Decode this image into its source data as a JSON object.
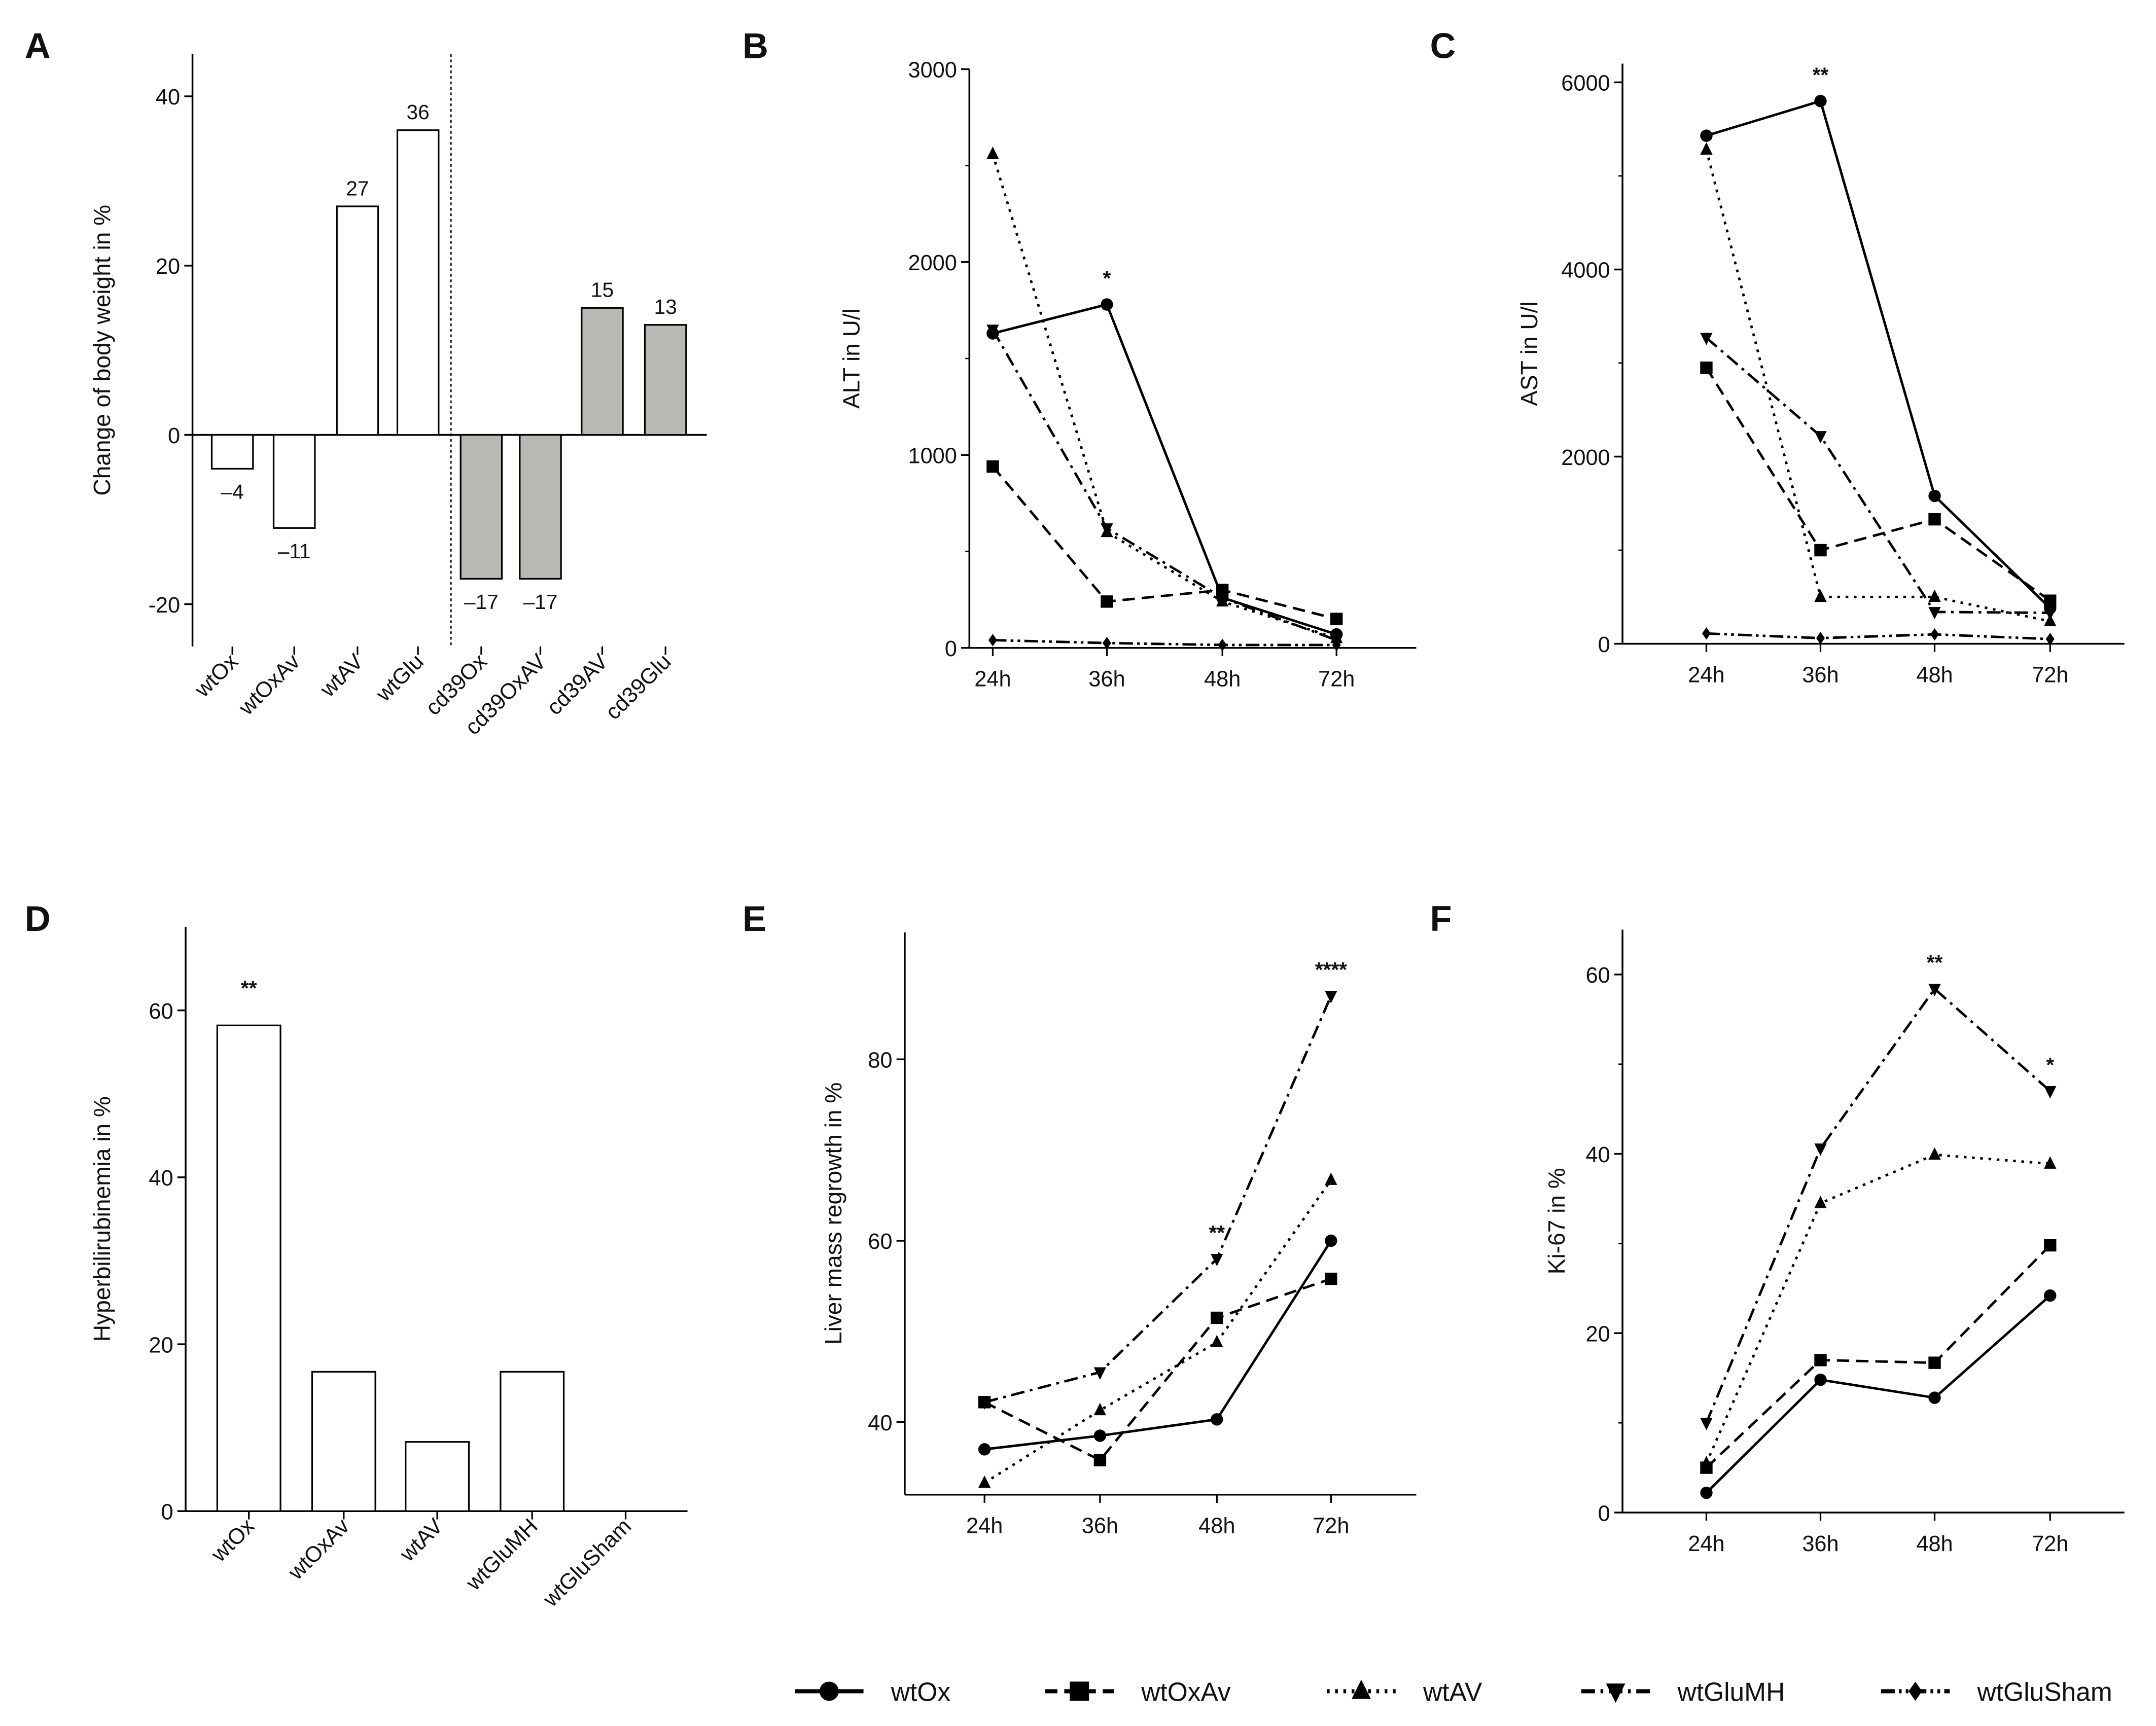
{
  "panel_letters": [
    "A",
    "B",
    "C",
    "D",
    "E",
    "F"
  ],
  "legend": [
    {
      "name": "wtOx",
      "marker": "circle",
      "dash": "solid"
    },
    {
      "name": "wtOxAv",
      "marker": "square",
      "dash": "dashed"
    },
    {
      "name": "wtAV",
      "marker": "triangle",
      "dash": "dotted"
    },
    {
      "name": "wtGluMH",
      "marker": "triangle-down",
      "dash": "dash-dot"
    },
    {
      "name": "wtGluSham",
      "marker": "diamond",
      "dash": "dash-dot-dot"
    }
  ],
  "chart_data": [
    {
      "panel": "A",
      "type": "bar",
      "ylabel": "Change of body weight in %",
      "ylim": [
        -25,
        45
      ],
      "yticks": [
        -20,
        0,
        20,
        40
      ],
      "categories": [
        "wtOx",
        "wtOxAv",
        "wtAV",
        "wtGlu",
        "cd39Ox",
        "cd39OxAV",
        "cd39AV",
        "cd39Glu"
      ],
      "values": [
        -4,
        -11,
        27,
        36,
        -17,
        -17,
        15,
        13
      ],
      "data_labels": [
        "–4",
        "–11",
        "27",
        "36",
        "–17",
        "–17",
        "15",
        "13"
      ],
      "fills": [
        "#ffffff",
        "#ffffff",
        "#ffffff",
        "#ffffff",
        "#b8b9b2",
        "#b8b9b2",
        "#b8b9b2",
        "#b8b9b2"
      ]
    },
    {
      "panel": "B",
      "type": "line",
      "ylabel": "ALT in U/l",
      "ylim": [
        0,
        3000
      ],
      "yticks": [
        0,
        1000,
        2000,
        3000
      ],
      "categories": [
        "24h",
        "36h",
        "48h",
        "72h"
      ],
      "series": [
        {
          "name": "wtOx",
          "values": [
            1630,
            1780,
            260,
            70
          ]
        },
        {
          "name": "wtOxAv",
          "values": [
            940,
            240,
            300,
            150
          ]
        },
        {
          "name": "wtAV",
          "values": [
            2560,
            600,
            240,
            50
          ]
        },
        {
          "name": "wtGluMH",
          "values": [
            1650,
            620,
            260,
            40
          ]
        },
        {
          "name": "wtGluSham",
          "values": [
            40,
            25,
            15,
            15
          ]
        }
      ],
      "annotations": [
        {
          "x": "36h",
          "y": 1780,
          "text": "*"
        }
      ]
    },
    {
      "panel": "C",
      "type": "line",
      "ylabel": "AST in U/l",
      "ylim": [
        0,
        6200
      ],
      "yticks": [
        0,
        2000,
        4000,
        6000
      ],
      "categories": [
        "24h",
        "36h",
        "48h",
        "72h"
      ],
      "series": [
        {
          "name": "wtOx",
          "values": [
            5430,
            5800,
            1580,
            380
          ]
        },
        {
          "name": "wtOxAv",
          "values": [
            2950,
            1000,
            1330,
            460
          ]
        },
        {
          "name": "wtAV",
          "values": [
            5280,
            500,
            500,
            240
          ]
        },
        {
          "name": "wtGluMH",
          "values": [
            3270,
            2220,
            340,
            330
          ]
        },
        {
          "name": "wtGluSham",
          "values": [
            110,
            60,
            100,
            50
          ]
        }
      ],
      "annotations": [
        {
          "x": "36h",
          "y": 5800,
          "text": "**"
        }
      ]
    },
    {
      "panel": "D",
      "type": "bar",
      "ylabel": "Hyperbilirubinemia in %",
      "ylim": [
        0,
        70
      ],
      "yticks": [
        0,
        20,
        40,
        60
      ],
      "categories": [
        "wtOx",
        "wtOxAv",
        "wtAV",
        "wtGluMH",
        "wtGluSham"
      ],
      "values": [
        58.2,
        16.7,
        8.3,
        16.7,
        0
      ],
      "annotations": [
        {
          "x": "wtOx",
          "y": 58.2,
          "text": "**"
        }
      ]
    },
    {
      "panel": "E",
      "type": "line",
      "ylabel": "Liver mass regrowth in %",
      "ylim": [
        32,
        94
      ],
      "yticks": [
        40,
        60,
        80
      ],
      "categories": [
        "24h",
        "36h",
        "48h",
        "72h"
      ],
      "series": [
        {
          "name": "wtOx",
          "values": [
            37,
            38.5,
            40.3,
            60
          ]
        },
        {
          "name": "wtOxAv",
          "values": [
            42.2,
            35.8,
            51.5,
            55.8
          ]
        },
        {
          "name": "wtAV",
          "values": [
            33.3,
            41.3,
            48.8,
            66.7
          ]
        },
        {
          "name": "wtGluMH",
          "values": [
            42.2,
            45.5,
            58,
            87
          ]
        }
      ],
      "annotations": [
        {
          "x": "48h",
          "y": 58,
          "text": "**"
        },
        {
          "x": "72h",
          "y": 87,
          "text": "****"
        }
      ]
    },
    {
      "panel": "F",
      "type": "line",
      "ylabel": "Ki-67 in %",
      "ylim": [
        0,
        65
      ],
      "yticks": [
        0,
        20,
        40,
        60
      ],
      "categories": [
        "24h",
        "36h",
        "48h",
        "72h"
      ],
      "series": [
        {
          "name": "wtOx",
          "values": [
            2.2,
            14.8,
            12.8,
            24.2
          ]
        },
        {
          "name": "wtOxAv",
          "values": [
            5,
            17,
            16.7,
            29.8
          ]
        },
        {
          "name": "wtAV",
          "values": [
            5.5,
            34.5,
            39.9,
            38.9
          ]
        },
        {
          "name": "wtGluMH",
          "values": [
            10,
            40.6,
            58.4,
            47
          ]
        }
      ],
      "annotations": [
        {
          "x": "48h",
          "y": 58.4,
          "text": "**"
        },
        {
          "x": "72h",
          "y": 47,
          "text": "*"
        }
      ]
    }
  ]
}
